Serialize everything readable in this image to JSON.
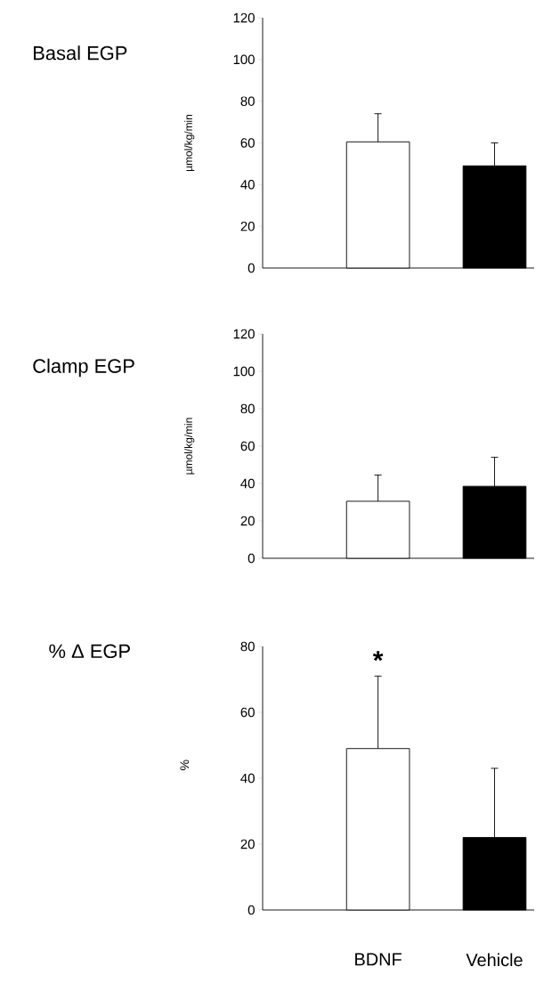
{
  "chart_data": [
    {
      "type": "bar",
      "title": "Basal EGP",
      "ylabel": "µmol/kg/min",
      "categories": [
        null,
        null
      ],
      "values": [
        60.5,
        49
      ],
      "errors": [
        13.5,
        11
      ],
      "colors": [
        "#ffffff",
        "#000000"
      ],
      "ylim": [
        0,
        120
      ],
      "yticks": [
        0,
        20,
        40,
        60,
        80,
        100,
        120
      ],
      "tick_labels": "y"
    },
    {
      "type": "bar",
      "title": "Clamp EGP",
      "ylabel": "µmol/kg/min",
      "categories": [
        null,
        null
      ],
      "values": [
        30.5,
        38.5
      ],
      "errors": [
        14,
        15.5
      ],
      "colors": [
        "#ffffff",
        "#000000"
      ],
      "ylim": [
        0,
        120
      ],
      "yticks": [
        0,
        20,
        40,
        60,
        80,
        100,
        120
      ],
      "tick_labels": "y"
    },
    {
      "type": "bar",
      "title": "% Δ EGP",
      "ylabel": "%",
      "categories": [
        "BDNF",
        "Vehicle"
      ],
      "values": [
        49,
        22
      ],
      "errors": [
        22,
        21
      ],
      "colors": [
        "#ffffff",
        "#000000"
      ],
      "ylim": [
        0,
        80
      ],
      "yticks": [
        0,
        20,
        40,
        60,
        80
      ],
      "annotations": [
        "*"
      ]
    }
  ]
}
